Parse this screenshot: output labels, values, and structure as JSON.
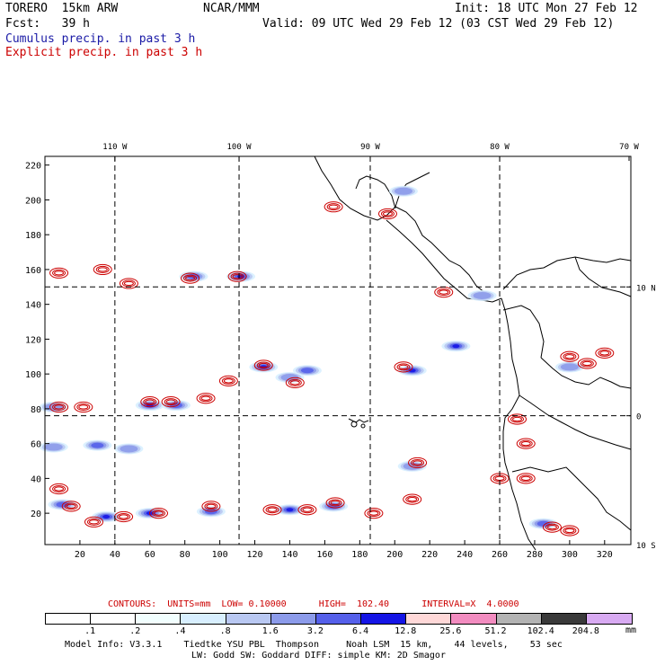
{
  "header": {
    "model": "TORERO  15km ARW",
    "org": "NCAR/MMM",
    "init": "Init: 18 UTC Mon 27 Feb 12",
    "fcst": "Fcst:   39 h",
    "valid": "Valid: 09 UTC Wed 29 Feb 12 (03 CST Wed 29 Feb 12)",
    "cumulus": "Cumulus precip. in past 3 h",
    "explicit": "Explicit precip. in past 3 h"
  },
  "colors": {
    "cumulus": "#1a1aa6",
    "explicit": "#cc0000",
    "map": "#000000"
  },
  "chart_data": {
    "type": "heatmap",
    "title": "Cumulus / Explicit precip. in past 3 h",
    "x_ticks": [
      20,
      40,
      60,
      80,
      100,
      120,
      140,
      160,
      180,
      200,
      220,
      240,
      260,
      280,
      300,
      320
    ],
    "y_ticks": [
      20,
      40,
      60,
      80,
      100,
      120,
      140,
      160,
      180,
      200,
      220
    ],
    "xlim": [
      0,
      335
    ],
    "ylim": [
      2,
      225
    ],
    "lon_labels": [
      {
        "label": "110 W",
        "x": 40
      },
      {
        "label": "100 W",
        "x": 111
      },
      {
        "label": "90 W",
        "x": 186
      },
      {
        "label": "80 W",
        "x": 260
      },
      {
        "label": "70 W",
        "x": 335
      }
    ],
    "lat_labels": [
      {
        "label": "10 N",
        "y": 150
      },
      {
        "label": "0",
        "y": 76
      },
      {
        "label": "10 S",
        "y": 2
      }
    ],
    "grid_x": [
      40,
      111,
      186,
      260
    ],
    "grid_y": [
      150,
      76
    ],
    "cumulus_cells": [
      {
        "x": 5,
        "y": 58,
        "i": 2
      },
      {
        "x": 30,
        "y": 59,
        "i": 3
      },
      {
        "x": 48,
        "y": 57,
        "i": 2
      },
      {
        "x": 112,
        "y": 156,
        "i": 4
      },
      {
        "x": 85,
        "y": 156,
        "i": 3
      },
      {
        "x": 5,
        "y": 81,
        "i": 2
      },
      {
        "x": 60,
        "y": 82,
        "i": 4
      },
      {
        "x": 75,
        "y": 82,
        "i": 3
      },
      {
        "x": 125,
        "y": 104,
        "i": 4
      },
      {
        "x": 150,
        "y": 102,
        "i": 3
      },
      {
        "x": 140,
        "y": 98,
        "i": 2
      },
      {
        "x": 210,
        "y": 102,
        "i": 4
      },
      {
        "x": 235,
        "y": 116,
        "i": 4
      },
      {
        "x": 10,
        "y": 25,
        "i": 3
      },
      {
        "x": 35,
        "y": 18,
        "i": 4
      },
      {
        "x": 60,
        "y": 20,
        "i": 4
      },
      {
        "x": 95,
        "y": 21,
        "i": 3
      },
      {
        "x": 140,
        "y": 22,
        "i": 4
      },
      {
        "x": 165,
        "y": 24,
        "i": 3
      },
      {
        "x": 210,
        "y": 47,
        "i": 2
      },
      {
        "x": 285,
        "y": 14,
        "i": 3
      },
      {
        "x": 205,
        "y": 205,
        "i": 2
      },
      {
        "x": 250,
        "y": 145,
        "i": 2
      },
      {
        "x": 300,
        "y": 104,
        "i": 2
      }
    ],
    "explicit_cells": [
      {
        "x": 8,
        "y": 158
      },
      {
        "x": 33,
        "y": 160
      },
      {
        "x": 48,
        "y": 152
      },
      {
        "x": 83,
        "y": 155
      },
      {
        "x": 110,
        "y": 156
      },
      {
        "x": 8,
        "y": 81
      },
      {
        "x": 22,
        "y": 81
      },
      {
        "x": 60,
        "y": 84
      },
      {
        "x": 72,
        "y": 84
      },
      {
        "x": 92,
        "y": 86
      },
      {
        "x": 105,
        "y": 96
      },
      {
        "x": 125,
        "y": 105
      },
      {
        "x": 143,
        "y": 95
      },
      {
        "x": 205,
        "y": 104
      },
      {
        "x": 8,
        "y": 34
      },
      {
        "x": 15,
        "y": 24
      },
      {
        "x": 28,
        "y": 15
      },
      {
        "x": 45,
        "y": 18
      },
      {
        "x": 65,
        "y": 20
      },
      {
        "x": 95,
        "y": 24
      },
      {
        "x": 130,
        "y": 22
      },
      {
        "x": 150,
        "y": 22
      },
      {
        "x": 166,
        "y": 26
      },
      {
        "x": 188,
        "y": 20
      },
      {
        "x": 213,
        "y": 49
      },
      {
        "x": 210,
        "y": 28
      },
      {
        "x": 165,
        "y": 196
      },
      {
        "x": 196,
        "y": 192
      },
      {
        "x": 228,
        "y": 147
      },
      {
        "x": 270,
        "y": 74
      },
      {
        "x": 275,
        "y": 60
      },
      {
        "x": 290,
        "y": 12
      },
      {
        "x": 300,
        "y": 110
      },
      {
        "x": 310,
        "y": 106
      },
      {
        "x": 320,
        "y": 112
      },
      {
        "x": 260,
        "y": 40
      },
      {
        "x": 275,
        "y": 40
      },
      {
        "x": 300,
        "y": 10
      }
    ]
  },
  "contours": {
    "text": "CONTOURS:  UNITS=mm  LOW= 0.10000      HIGH=  102.40      INTERVAL=X  4.0000"
  },
  "legend": {
    "labels": [
      ".1",
      ".2",
      ".4",
      ".8",
      "1.6",
      "3.2",
      "6.4",
      "12.8",
      "25.6",
      "51.2",
      "102.4",
      "204.8"
    ],
    "unit": "mm",
    "colors": [
      "#ffffff",
      "#ffffff",
      "#f2ffff",
      "#d8efff",
      "#b9c8f2",
      "#8c9bea",
      "#5560ea",
      "#1515e6",
      "#ffd8d8",
      "#f28cc0",
      "#b3b3b3",
      "#3a3a3a",
      "#d8aaf2"
    ]
  },
  "footer": {
    "line1": "Model Info: V3.3.1    Tiedtke YSU PBL  Thompson     Noah LSM  15 km,    44 levels,    53 sec",
    "line2": "LW: Godd SW: Goddard DIFF: simple KM: 2D Smagor"
  }
}
